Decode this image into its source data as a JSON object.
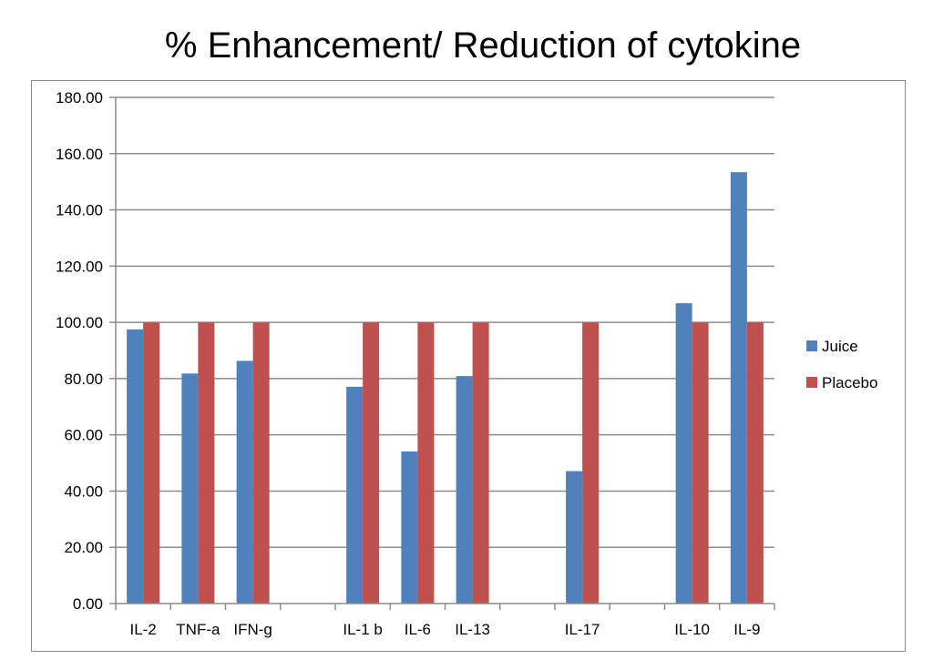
{
  "chart_data": {
    "type": "bar",
    "title": "% Enhancement/ Reduction of cytokine",
    "categories": [
      "IL-2",
      "TNF-a",
      "IFN-g",
      "",
      "IL-1 b",
      "IL-6",
      "IL-13",
      "",
      "IL-17",
      "",
      "IL-10",
      "IL-9"
    ],
    "series": [
      {
        "name": "Juice",
        "color": "#4f81bd",
        "values": [
          97.5,
          81.8,
          86.3,
          null,
          77.1,
          54.1,
          80.9,
          null,
          47.1,
          null,
          106.8,
          153.4
        ]
      },
      {
        "name": "Placebo",
        "color": "#c0504d",
        "values": [
          100,
          100,
          100,
          null,
          100,
          100,
          100,
          null,
          100,
          null,
          100,
          100
        ]
      }
    ],
    "ylim": [
      0,
      180
    ],
    "yticks": [
      "0.00",
      "20.00",
      "40.00",
      "60.00",
      "80.00",
      "100.00",
      "120.00",
      "140.00",
      "160.00",
      "180.00"
    ],
    "ytick_values": [
      0,
      20,
      40,
      60,
      80,
      100,
      120,
      140,
      160,
      180
    ],
    "grid": true,
    "legend_position": "right"
  }
}
